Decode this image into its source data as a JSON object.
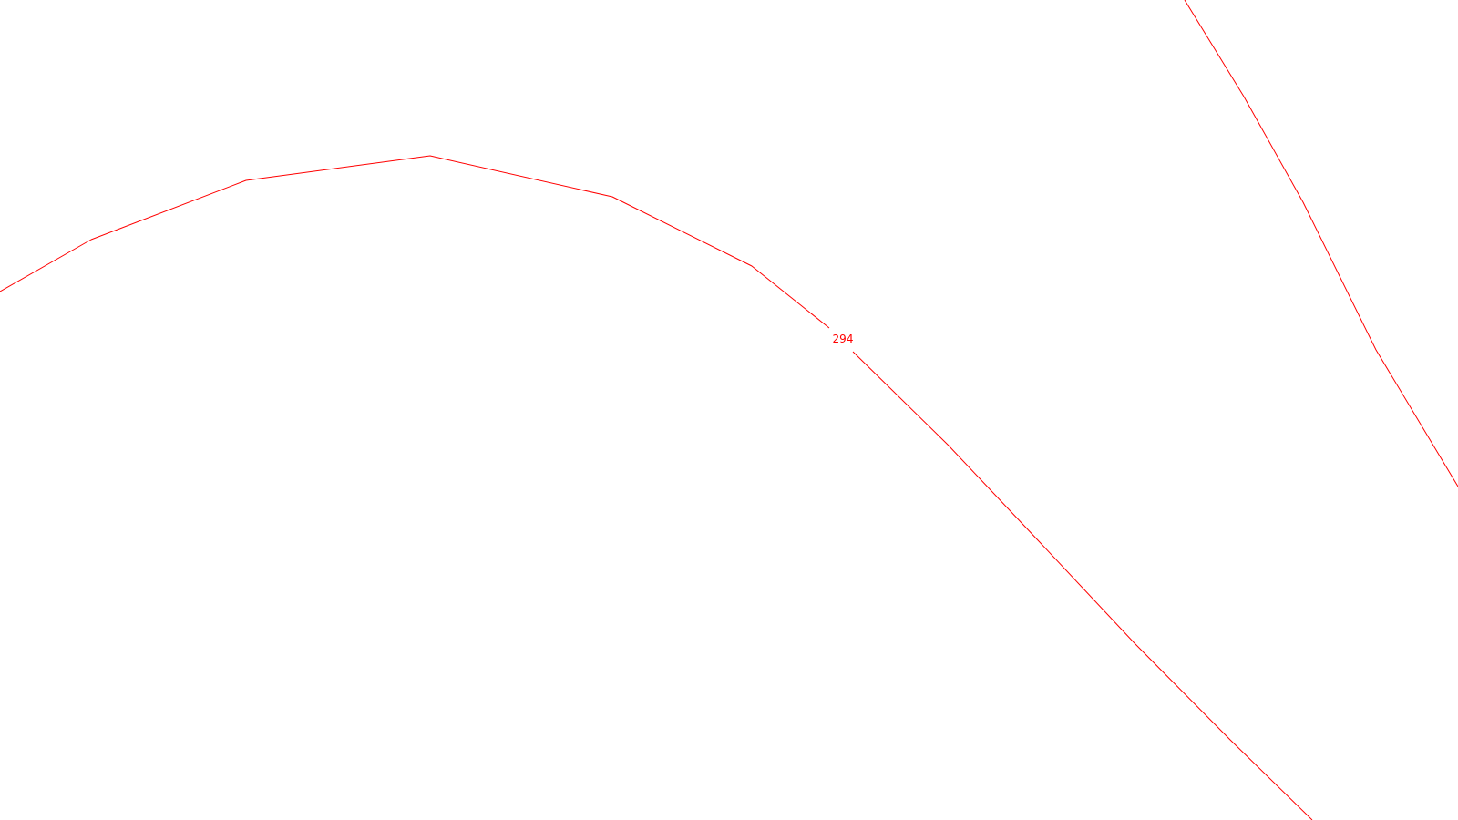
{
  "map": {
    "background_color": "#ffffff",
    "line_color": "#ff0000",
    "contours": [
      {
        "id": "contour-main",
        "label": "294"
      },
      {
        "id": "contour-right",
        "label": ""
      }
    ]
  }
}
